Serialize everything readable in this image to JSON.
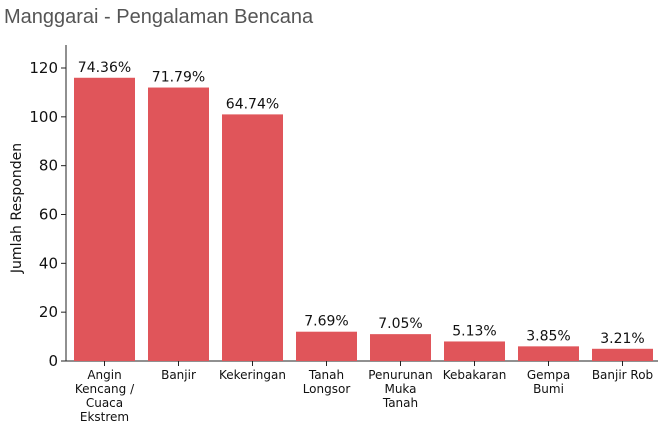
{
  "chart_data": {
    "type": "bar",
    "title": "Manggarai - Pengalaman Bencana",
    "xlabel": "",
    "ylabel": "Jumlah Responden",
    "ylim": [
      0,
      120
    ],
    "yticks": [
      0,
      20,
      40,
      60,
      80,
      100,
      120
    ],
    "grid": false,
    "categories": [
      "Angin Kencang / Cuaca Ekstrem",
      "Banjir",
      "Kekeringan",
      "Tanah Longsor",
      "Penurunan Muka Tanah",
      "Kebakaran",
      "Gempa Bumi",
      "Banjir Rob"
    ],
    "category_lines": [
      [
        "Angin",
        "Kencang /",
        "Cuaca",
        "Ekstrem"
      ],
      [
        "Banjir"
      ],
      [
        "Kekeringan"
      ],
      [
        "Tanah",
        "Longsor"
      ],
      [
        "Penurunan",
        "Muka",
        "Tanah"
      ],
      [
        "Kebakaran"
      ],
      [
        "Gempa",
        "Bumi"
      ],
      [
        "Banjir Rob"
      ]
    ],
    "values": [
      116,
      112,
      101,
      12,
      11,
      8,
      6,
      5
    ],
    "data_labels": [
      "74.36%",
      "71.79%",
      "64.74%",
      "7.69%",
      "7.05%",
      "5.13%",
      "3.85%",
      "3.21%"
    ],
    "bar_color": "#e0555a"
  }
}
